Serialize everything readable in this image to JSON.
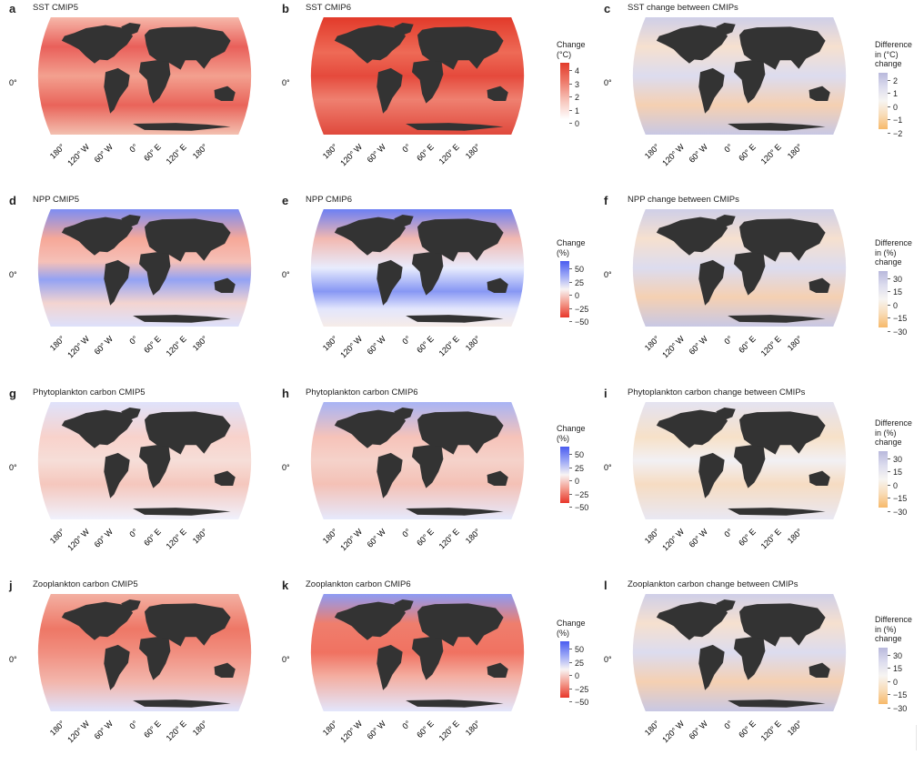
{
  "panels": [
    {
      "letter": "a",
      "title": "SST CMIP5",
      "type": "abs",
      "tickLabels": [
        "180°",
        "120° W",
        "60° W",
        "0°",
        "60° E",
        "120° E",
        "180°"
      ],
      "lat": "0°"
    },
    {
      "letter": "b",
      "title": "SST CMIP6",
      "type": "abs_hot",
      "tickLabels": [
        "180°",
        "120° W",
        "60° W",
        "0°",
        "60° E",
        "120° E",
        "180°"
      ],
      "lat": "0°"
    },
    {
      "letter": "c",
      "title": "SST change between CMIPs",
      "type": "diff",
      "tickLabels": [
        "180°",
        "120° W",
        "60° W",
        "0°",
        "60° E",
        "120° E",
        "180°"
      ],
      "lat": "0°"
    },
    {
      "letter": "d",
      "title": "NPP CMIP5",
      "type": "npp",
      "tickLabels": [
        "180°",
        "120° W",
        "60° W",
        "0°",
        "60° E",
        "120° E",
        "180°"
      ],
      "lat": "0°"
    },
    {
      "letter": "e",
      "title": "NPP CMIP6",
      "type": "npp6",
      "tickLabels": [
        "180°",
        "120° W",
        "60° W",
        "0°",
        "60° E",
        "120° E",
        "180°"
      ],
      "lat": "0°"
    },
    {
      "letter": "f",
      "title": "NPP change between CMIPs",
      "type": "diff",
      "tickLabels": [
        "180°",
        "120° W",
        "60° W",
        "0°",
        "60° E",
        "120° E",
        "180°"
      ],
      "lat": "0°"
    },
    {
      "letter": "g",
      "title": "Phytoplankton carbon CMIP5",
      "type": "pale",
      "tickLabels": [
        "180°",
        "120° W",
        "60° W",
        "0°",
        "60° E",
        "120° E",
        "180°"
      ],
      "lat": "0°"
    },
    {
      "letter": "h",
      "title": "Phytoplankton carbon CMIP6",
      "type": "pale6",
      "tickLabels": [
        "180°",
        "120° W",
        "60° W",
        "0°",
        "60° E",
        "120° E",
        "180°"
      ],
      "lat": "0°"
    },
    {
      "letter": "i",
      "title": "Phytoplankton carbon change between CMIPs",
      "type": "diffpale",
      "tickLabels": [
        "180°",
        "120° W",
        "60° W",
        "0°",
        "60° E",
        "120° E",
        "180°"
      ],
      "lat": "0°"
    },
    {
      "letter": "j",
      "title": "Zooplankton carbon CMIP5",
      "type": "zoo",
      "tickLabels": [
        "180°",
        "120° W",
        "60° W",
        "0°",
        "60° E",
        "120° E",
        "180°"
      ],
      "lat": "0°"
    },
    {
      "letter": "k",
      "title": "Zooplankton carbon CMIP6",
      "type": "zoo6",
      "tickLabels": [
        "180°",
        "120° W",
        "60° W",
        "0°",
        "60° E",
        "120° E",
        "180°"
      ],
      "lat": "0°"
    },
    {
      "letter": "l",
      "title": "Zooplankton carbon change between CMIPs",
      "type": "diff",
      "tickLabels": [
        "180°",
        "120° W",
        "60° W",
        "0°",
        "60° E",
        "120° E",
        "180°"
      ],
      "lat": "0°"
    }
  ],
  "legends": [
    {
      "title": [
        "Change",
        "(°C)"
      ],
      "ticks": [
        "4",
        "3",
        "2",
        "1",
        "0"
      ],
      "scale": "reds"
    },
    {
      "title": [
        "Difference",
        "in (°C)",
        "change"
      ],
      "ticks": [
        "2",
        "1",
        "0",
        "−1",
        "−2"
      ],
      "scale": "purple-orange"
    },
    {
      "title": [
        "Change",
        "(%)"
      ],
      "ticks": [
        "50",
        "25",
        "0",
        "−25",
        "−50"
      ],
      "scale": "blue-red"
    },
    {
      "title": [
        "Difference",
        "in (%)",
        "change"
      ],
      "ticks": [
        "30",
        "15",
        "0",
        "−15",
        "−30"
      ],
      "scale": "purple-orange"
    },
    {
      "title": [
        "Change",
        "(%)"
      ],
      "ticks": [
        "50",
        "25",
        "0",
        "−25",
        "−50"
      ],
      "scale": "blue-red"
    },
    {
      "title": [
        "Difference",
        "in (%)",
        "change"
      ],
      "ticks": [
        "30",
        "15",
        "0",
        "−15",
        "−30"
      ],
      "scale": "purple-orange"
    },
    {
      "title": [
        "Change",
        "(%)"
      ],
      "ticks": [
        "50",
        "25",
        "0",
        "−25",
        "−50"
      ],
      "scale": "blue-red"
    },
    {
      "title": [
        "Difference",
        "in (%)",
        "change"
      ],
      "ticks": [
        "30",
        "15",
        "0",
        "−15",
        "−30"
      ],
      "scale": "purple-orange"
    }
  ],
  "colors": {
    "land": "#333333",
    "red": "#e8463a",
    "blue": "#5a6cf0",
    "purple": "#b9b9dc",
    "orange": "#f7b96a"
  }
}
